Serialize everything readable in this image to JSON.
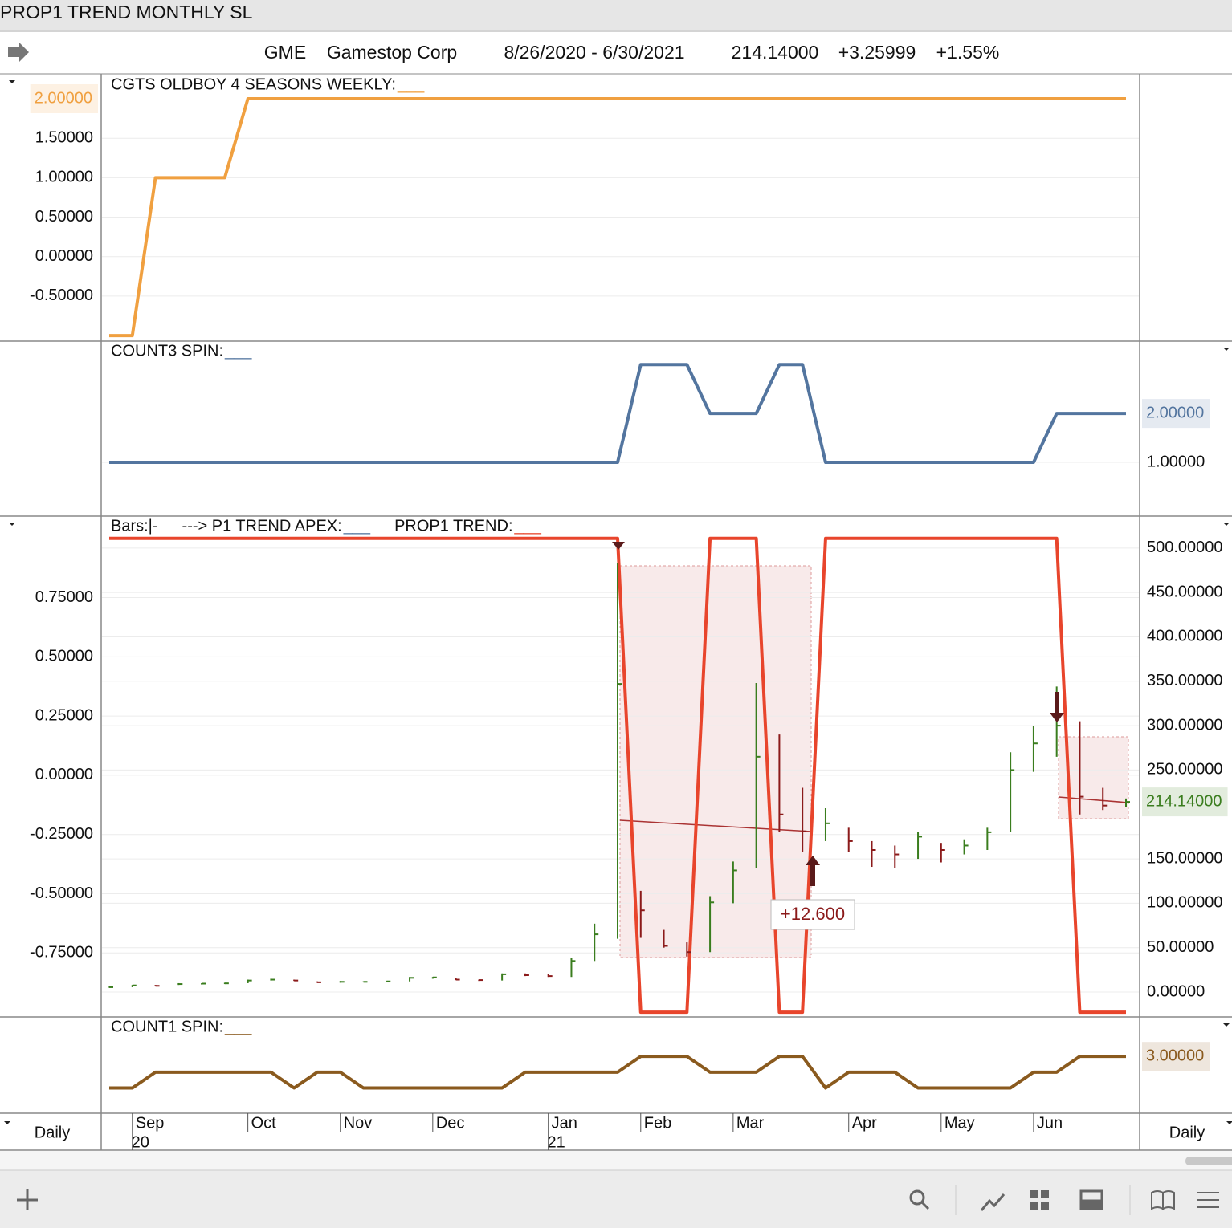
{
  "window_title": "PROP1 TREND MONTHLY SL",
  "header": {
    "symbol": "GME",
    "name": "Gamestop Corp",
    "range": "8/26/2020 - 6/30/2021",
    "price": "214.14000",
    "change": "+3.25999",
    "change_pct": "+1.55%"
  },
  "time_axis": {
    "interval_left": "Daily",
    "interval_right": "Daily",
    "categories": [
      null,
      "Sep",
      null,
      null,
      null,
      null,
      "Oct",
      null,
      null,
      null,
      "Nov",
      null,
      null,
      null,
      "Dec",
      null,
      null,
      null,
      null,
      "Jan",
      null,
      null,
      null,
      "Feb",
      null,
      null,
      null,
      "Mar",
      null,
      null,
      null,
      null,
      "Apr",
      null,
      null,
      null,
      "May",
      null,
      null,
      null,
      "Jun",
      null,
      null,
      null,
      null
    ],
    "years": [
      null,
      "20",
      null,
      null,
      null,
      null,
      null,
      null,
      null,
      null,
      null,
      null,
      null,
      null,
      null,
      null,
      null,
      null,
      null,
      "21",
      null,
      null,
      null,
      null,
      null,
      null,
      null,
      null,
      null,
      null,
      null,
      null,
      null,
      null,
      null,
      null,
      null,
      null,
      null,
      null,
      null,
      null,
      null,
      null,
      null
    ]
  },
  "panels": [
    {
      "legend": [
        {
          "text": "CGTS OLDBOY 4 SEASONS WEEKLY:",
          "key": "___",
          "color": "#f0a040"
        }
      ],
      "yaxis_side": "left",
      "ylim": [
        -1.07,
        2.305
      ],
      "grid": true,
      "yticks": [
        {
          "value": 1.5,
          "label": "1.50000"
        },
        {
          "value": 1,
          "label": "1.00000"
        },
        {
          "value": 0.5,
          "label": "0.50000"
        },
        {
          "value": 0,
          "label": "0.00000"
        },
        {
          "value": -0.5,
          "label": "-0.50000"
        }
      ],
      "series": [
        {
          "type": "line",
          "color": "#f0a040",
          "label_side": "left",
          "values": [
            -1,
            -1,
            1,
            1,
            1,
            1,
            2,
            2,
            2,
            2,
            2,
            2,
            2,
            2,
            2,
            2,
            2,
            2,
            2,
            2,
            2,
            2,
            2,
            2,
            2,
            2,
            2,
            2,
            2,
            2,
            2,
            2,
            2,
            2,
            2,
            2,
            2,
            2,
            2,
            2,
            2,
            2,
            2,
            2,
            2
          ],
          "value_labels": [
            null,
            null,
            null,
            null,
            null,
            null,
            null,
            null,
            null,
            null,
            null,
            null,
            null,
            null,
            null,
            null,
            null,
            null,
            null,
            null,
            null,
            null,
            null,
            null,
            null,
            null,
            null,
            null,
            null,
            null,
            null,
            null,
            null,
            null,
            null,
            null,
            null,
            null,
            null,
            null,
            null,
            null,
            null,
            null,
            "2.00000"
          ]
        }
      ]
    },
    {
      "legend": [
        {
          "text": "COUNT3 SPIN:",
          "key": "___",
          "color": "#53759f"
        }
      ],
      "yaxis_side": "right",
      "ylim": [
        -0.1,
        3.48
      ],
      "grid": true,
      "yticks": [
        {
          "value": 1,
          "label": "1.00000"
        }
      ],
      "series": [
        {
          "type": "line",
          "color": "#53759f",
          "label_side": "right",
          "values": [
            1,
            1,
            1,
            1,
            1,
            1,
            1,
            1,
            1,
            1,
            1,
            1,
            1,
            1,
            1,
            1,
            1,
            1,
            1,
            1,
            1,
            1,
            1,
            3,
            3,
            3,
            2,
            2,
            2,
            3,
            3,
            1,
            1,
            1,
            1,
            1,
            1,
            1,
            1,
            1,
            1,
            2,
            2,
            2,
            2
          ],
          "value_labels": [
            null,
            null,
            null,
            null,
            null,
            null,
            null,
            null,
            null,
            null,
            null,
            null,
            null,
            null,
            null,
            null,
            null,
            null,
            null,
            null,
            null,
            null,
            null,
            null,
            null,
            null,
            null,
            null,
            null,
            null,
            null,
            null,
            null,
            null,
            null,
            null,
            null,
            null,
            null,
            null,
            null,
            null,
            null,
            null,
            "2.00000"
          ]
        }
      ]
    },
    {
      "legend": [
        {
          "text": "Bars:|-"
        },
        {
          "text": "---> P1 TREND APEX:",
          "key": "___",
          "color": "#53759f"
        },
        {
          "text": "PROP1 TREND:",
          "key": "___",
          "color": "#e8452c"
        }
      ],
      "yaxis_side": "left",
      "ylim": [
        -1.02,
        1.094
      ],
      "y2lim": [
        -28,
        536
      ],
      "grid": true,
      "yticks": [
        {
          "value": 0.75,
          "label": "0.75000"
        },
        {
          "value": 0.5,
          "label": "0.50000"
        },
        {
          "value": 0.25,
          "label": "0.25000"
        },
        {
          "value": 0,
          "label": "0.00000"
        },
        {
          "value": -0.25,
          "label": "-0.25000"
        },
        {
          "value": -0.5,
          "label": "-0.50000"
        },
        {
          "value": -0.75,
          "label": "-0.75000"
        }
      ],
      "y2ticks": [
        {
          "value": 500,
          "label": "500.00000"
        },
        {
          "value": 450,
          "label": "450.00000"
        },
        {
          "value": 400,
          "label": "400.00000"
        },
        {
          "value": 350,
          "label": "350.00000"
        },
        {
          "value": 300,
          "label": "300.00000"
        },
        {
          "value": 250,
          "label": "250.00000"
        },
        {
          "value": 150,
          "label": "150.00000"
        },
        {
          "value": 100,
          "label": "100.00000"
        },
        {
          "value": 50,
          "label": "50.00000"
        },
        {
          "value": 0,
          "label": "0.00000"
        }
      ],
      "annotations": [
        "+12.600"
      ],
      "series": [
        {
          "type": "line",
          "color": "#e8452c",
          "values": [
            1,
            1,
            1,
            1,
            1,
            1,
            1,
            1,
            1,
            1,
            1,
            1,
            1,
            1,
            1,
            1,
            1,
            1,
            1,
            1,
            1,
            1,
            1,
            -1,
            -1,
            -1,
            1,
            1,
            1,
            -1,
            -1,
            1,
            1,
            1,
            1,
            1,
            1,
            1,
            1,
            1,
            1,
            1,
            -1,
            -1,
            -1
          ]
        },
        {
          "type": "ohlc",
          "axis": "y2",
          "up_color": "#3a7d1e",
          "down_color": "#8b1a1a",
          "label_side": "right",
          "high": [
            6,
            8,
            8,
            10,
            10,
            10.5,
            14,
            15,
            14,
            12,
            12.5,
            12,
            12.5,
            17,
            17,
            16,
            14,
            21,
            21,
            20,
            38,
            77,
            483,
            114,
            70,
            56,
            108,
            147,
            348,
            290,
            230,
            207,
            185,
            170,
            165,
            180,
            168,
            172,
            185,
            270,
            300,
            344,
            305,
            230,
            218
          ],
          "low": [
            5,
            5.5,
            6.5,
            8,
            8.5,
            9,
            10,
            13,
            12.5,
            10.5,
            10.5,
            11,
            11,
            12,
            15,
            13.5,
            12.5,
            13,
            18,
            17,
            17,
            35,
            60,
            61,
            50,
            40,
            45,
            100,
            140,
            180,
            158,
            170,
            158,
            141,
            140,
            150,
            146,
            155,
            160,
            180,
            248,
            265,
            200,
            205,
            208
          ],
          "close": [
            5.5,
            7.5,
            7,
            9,
            9.5,
            9.8,
            13,
            14,
            13,
            11,
            11.5,
            11.5,
            12,
            16,
            16.5,
            14,
            13.5,
            20,
            19,
            18,
            35,
            65,
            347,
            92,
            52,
            45,
            101,
            137,
            265,
            200,
            181,
            190,
            170,
            160,
            155,
            175,
            160,
            165,
            180,
            250,
            280,
            300,
            220,
            210,
            214.14
          ],
          "value_labels": [
            null,
            null,
            null,
            null,
            null,
            null,
            null,
            null,
            null,
            null,
            null,
            null,
            null,
            null,
            null,
            null,
            null,
            null,
            null,
            null,
            null,
            null,
            null,
            null,
            null,
            null,
            null,
            null,
            null,
            null,
            null,
            null,
            null,
            null,
            null,
            null,
            null,
            null,
            null,
            null,
            null,
            null,
            null,
            null,
            "214.14000"
          ]
        }
      ]
    },
    {
      "legend": [
        {
          "text": "COUNT1 SPIN:",
          "key": "___",
          "color": "#8a5a1e"
        }
      ],
      "yaxis_side": "right",
      "ylim": [
        -0.6,
        5.5
      ],
      "grid": true,
      "yticks": [],
      "series": [
        {
          "type": "line",
          "color": "#8a5a1e",
          "label_side": "right",
          "values": [
            1,
            1,
            2,
            2,
            2,
            2,
            2,
            2,
            1,
            2,
            2,
            1,
            1,
            1,
            1,
            1,
            1,
            1,
            2,
            2,
            2,
            2,
            2,
            3,
            3,
            3,
            2,
            2,
            2,
            3,
            3,
            1,
            2,
            2,
            2,
            1,
            1,
            1,
            1,
            1,
            2,
            2,
            3,
            3,
            3
          ],
          "value_labels": [
            null,
            null,
            null,
            null,
            null,
            null,
            null,
            null,
            null,
            null,
            null,
            null,
            null,
            null,
            null,
            null,
            null,
            null,
            null,
            null,
            null,
            null,
            null,
            null,
            null,
            null,
            null,
            null,
            null,
            null,
            null,
            null,
            null,
            null,
            null,
            null,
            null,
            null,
            null,
            null,
            null,
            null,
            null,
            null,
            "3.00000"
          ]
        }
      ]
    }
  ]
}
